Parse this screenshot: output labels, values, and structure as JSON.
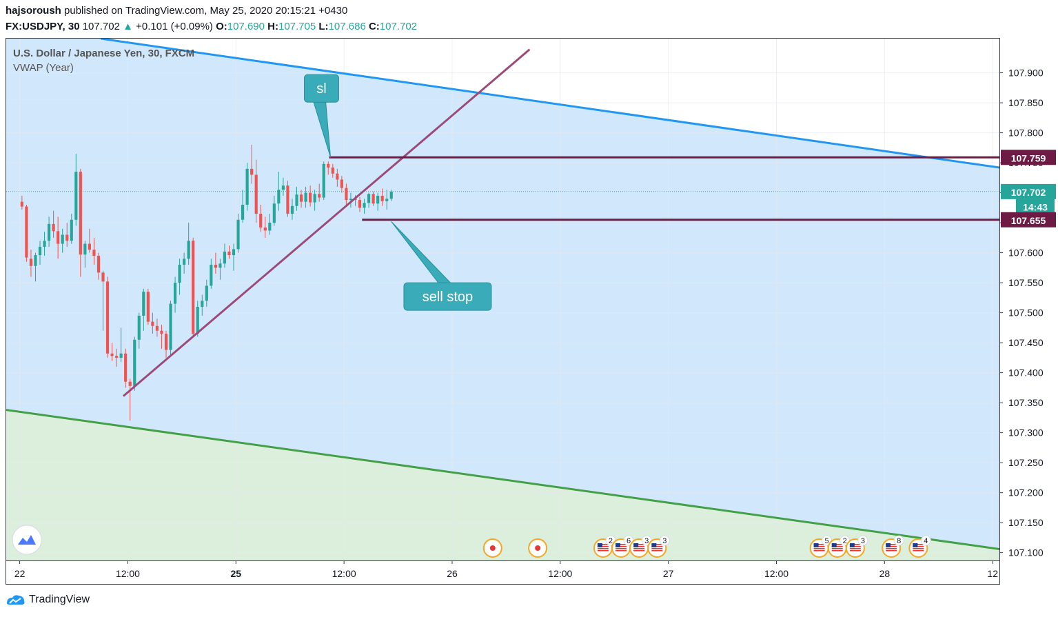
{
  "header": {
    "author": "hajsoroush",
    "published_text": "published on TradingView.com, May 25, 2020 20:15:21 +0430",
    "symbol": "FX:USDJPY, 30",
    "last": "107.702",
    "change": "+0.101 (+0.09%)",
    "o_label": "O:",
    "o_value": "107.690",
    "h_label": "H:",
    "h_value": "107.705",
    "l_label": "L:",
    "l_value": "107.686",
    "c_label": "C:",
    "c_value": "107.702"
  },
  "legend": {
    "title": "U.S. Dollar / Japanese Yen, 30, FXCM",
    "indicator": "VWAP (Year)"
  },
  "footer": {
    "brand": "TradingView"
  },
  "colors": {
    "up": "#26a69a",
    "down": "#ef5350",
    "upper_band": "#2196f3",
    "lower_band": "#43a047",
    "channel_fill": "#d1e8fc",
    "green_fill": "#dcefdc",
    "trendline": "#9c4a7a",
    "level": "#6d1b44",
    "callout": "#3aabb8"
  },
  "chart_data": {
    "type": "candlestick",
    "title": "U.S. Dollar / Japanese Yen, 30, FXCM",
    "y_ticks": [
      "107.900",
      "107.850",
      "107.800",
      "107.750",
      "107.700",
      "107.650",
      "107.600",
      "107.550",
      "107.500",
      "107.450",
      "107.400",
      "107.350",
      "107.300",
      "107.250",
      "107.200",
      "107.150",
      "107.100"
    ],
    "x_ticks": [
      {
        "label": "22",
        "bold": false,
        "bar": -0.5
      },
      {
        "label": "12:00",
        "bold": false,
        "bar": 23.5
      },
      {
        "label": "25",
        "bold": true,
        "bar": 47.5
      },
      {
        "label": "12:00",
        "bold": false,
        "bar": 71.5
      },
      {
        "label": "26",
        "bold": false,
        "bar": 95.5
      },
      {
        "label": "12:00",
        "bold": false,
        "bar": 119.5
      },
      {
        "label": "27",
        "bold": false,
        "bar": 143.5
      },
      {
        "label": "12:00",
        "bold": false,
        "bar": 167.5
      },
      {
        "label": "28",
        "bold": false,
        "bar": 191.5
      },
      {
        "label": "12",
        "bold": false,
        "bar": 215.5
      }
    ],
    "y_range": [
      107.087,
      107.957
    ],
    "bar_range": [
      -3.5,
      217
    ],
    "price_labels": [
      {
        "value": "107.759",
        "price": 107.759,
        "kind": "level"
      },
      {
        "value": "107.702",
        "price": 107.702,
        "kind": "last"
      },
      {
        "value": "14:43",
        "price": 107.677,
        "kind": "countdown"
      },
      {
        "value": "107.655",
        "price": 107.655,
        "kind": "level"
      }
    ],
    "horizontal_levels": [
      {
        "price": 107.759,
        "from_bar": 68.2,
        "name": "sl level"
      },
      {
        "price": 107.655,
        "from_bar": 75.5,
        "name": "sell stop level"
      }
    ],
    "channel": {
      "upper": [
        {
          "bar": 17.5,
          "price": 107.957
        },
        {
          "bar": 217,
          "price": 107.742
        }
      ],
      "lower": [
        {
          "bar": -3.5,
          "price": 107.338
        },
        {
          "bar": 217,
          "price": 107.106
        }
      ]
    },
    "trendline": [
      {
        "bar": 22.5,
        "price": 107.361
      },
      {
        "bar": 112.7,
        "price": 107.939
      }
    ],
    "callouts": [
      {
        "text": "sl",
        "bar": 66.5,
        "price": 107.874,
        "tip_bar": 68.5,
        "tip_price": 107.759
      },
      {
        "text": "sell stop",
        "bar": 94.5,
        "price": 107.527,
        "tip_bar": 82,
        "tip_price": 107.652
      }
    ],
    "events": [
      {
        "bar": 104.5,
        "label": ""
      },
      {
        "bar": 114.5,
        "label": ""
      },
      {
        "bar": 129,
        "label": "2"
      },
      {
        "bar": 133,
        "label": "6"
      },
      {
        "bar": 137,
        "label": "3"
      },
      {
        "bar": 141,
        "label": "3"
      },
      {
        "bar": 177,
        "label": "5"
      },
      {
        "bar": 181,
        "label": "2"
      },
      {
        "bar": 185,
        "label": "3"
      },
      {
        "bar": 193,
        "label": "8"
      },
      {
        "bar": 199,
        "label": "4"
      }
    ],
    "candles": [
      [
        107.685,
        107.695,
        107.672,
        107.677
      ],
      [
        107.677,
        107.68,
        107.585,
        107.592
      ],
      [
        107.59,
        107.605,
        107.56,
        107.578
      ],
      [
        107.578,
        107.6,
        107.552,
        107.596
      ],
      [
        107.596,
        107.62,
        107.58,
        107.61
      ],
      [
        107.61,
        107.635,
        107.595,
        107.62
      ],
      [
        107.62,
        107.66,
        107.61,
        107.648
      ],
      [
        107.648,
        107.67,
        107.625,
        107.636
      ],
      [
        107.636,
        107.66,
        107.59,
        107.615
      ],
      [
        107.615,
        107.64,
        107.6,
        107.63
      ],
      [
        107.63,
        107.65,
        107.61,
        107.62
      ],
      [
        107.62,
        107.665,
        107.615,
        107.655
      ],
      [
        107.655,
        107.765,
        107.645,
        107.735
      ],
      [
        107.735,
        107.74,
        107.56,
        107.597
      ],
      [
        107.597,
        107.62,
        107.575,
        107.615
      ],
      [
        107.615,
        107.64,
        107.6,
        107.605
      ],
      [
        107.605,
        107.625,
        107.58,
        107.595
      ],
      [
        107.595,
        107.6,
        107.555,
        107.567
      ],
      [
        107.567,
        107.57,
        107.47,
        107.552
      ],
      [
        107.552,
        107.56,
        107.425,
        107.432
      ],
      [
        107.432,
        107.45,
        107.42,
        107.428
      ],
      [
        107.428,
        107.44,
        107.41,
        107.425
      ],
      [
        107.425,
        107.475,
        107.418,
        107.432
      ],
      [
        107.432,
        107.44,
        107.375,
        107.385
      ],
      [
        107.385,
        107.39,
        107.32,
        107.378
      ],
      [
        107.378,
        107.46,
        107.37,
        107.455
      ],
      [
        107.455,
        107.5,
        107.44,
        107.495
      ],
      [
        107.495,
        107.54,
        107.47,
        107.535
      ],
      [
        107.535,
        107.54,
        107.48,
        107.485
      ],
      [
        107.485,
        107.5,
        107.465,
        107.478
      ],
      [
        107.478,
        107.49,
        107.46,
        107.47
      ],
      [
        107.47,
        107.48,
        107.44,
        107.465
      ],
      [
        107.465,
        107.47,
        107.425,
        107.438
      ],
      [
        107.438,
        107.52,
        107.43,
        107.515
      ],
      [
        107.515,
        107.56,
        107.5,
        107.55
      ],
      [
        107.55,
        107.59,
        107.53,
        107.58
      ],
      [
        107.58,
        107.6,
        107.565,
        107.59
      ],
      [
        107.59,
        107.65,
        107.58,
        107.62
      ],
      [
        107.62,
        107.625,
        107.46,
        107.465
      ],
      [
        107.465,
        107.52,
        107.46,
        107.51
      ],
      [
        107.51,
        107.53,
        107.495,
        107.52
      ],
      [
        107.52,
        107.555,
        107.51,
        107.545
      ],
      [
        107.545,
        107.59,
        107.54,
        107.58
      ],
      [
        107.58,
        107.6,
        107.565,
        107.575
      ],
      [
        107.575,
        107.59,
        107.555,
        107.582
      ],
      [
        107.582,
        107.615,
        107.575,
        107.602
      ],
      [
        107.602,
        107.612,
        107.59,
        107.596
      ],
      [
        107.596,
        107.615,
        107.57,
        107.606
      ],
      [
        107.606,
        107.665,
        107.6,
        107.655
      ],
      [
        107.655,
        107.705,
        107.65,
        107.68
      ],
      [
        107.68,
        107.75,
        107.67,
        107.74
      ],
      [
        107.74,
        107.78,
        107.715,
        107.73
      ],
      [
        107.73,
        107.755,
        107.65,
        107.665
      ],
      [
        107.665,
        107.68,
        107.635,
        107.642
      ],
      [
        107.642,
        107.66,
        107.625,
        107.637
      ],
      [
        107.637,
        107.665,
        107.63,
        107.65
      ],
      [
        107.65,
        107.695,
        107.645,
        107.682
      ],
      [
        107.682,
        107.735,
        107.67,
        107.705
      ],
      [
        107.705,
        107.725,
        107.695,
        107.712
      ],
      [
        107.712,
        107.72,
        107.66,
        107.665
      ],
      [
        107.665,
        107.69,
        107.655,
        107.678
      ],
      [
        107.678,
        107.71,
        107.67,
        107.697
      ],
      [
        107.697,
        107.705,
        107.675,
        107.685
      ],
      [
        107.685,
        107.71,
        107.675,
        107.7
      ],
      [
        107.7,
        107.712,
        107.677,
        107.684
      ],
      [
        107.684,
        107.705,
        107.67,
        107.698
      ],
      [
        107.698,
        107.715,
        107.685,
        107.692
      ],
      [
        107.692,
        107.752,
        107.688,
        107.748
      ],
      [
        107.748,
        107.752,
        107.73,
        107.742
      ],
      [
        107.742,
        107.748,
        107.725,
        107.732
      ],
      [
        107.732,
        107.74,
        107.71,
        107.722
      ],
      [
        107.722,
        107.728,
        107.7,
        107.708
      ],
      [
        107.708,
        107.715,
        107.68,
        107.688
      ],
      [
        107.688,
        107.7,
        107.675,
        107.69
      ],
      [
        107.69,
        107.696,
        107.678,
        107.688
      ],
      [
        107.688,
        107.693,
        107.668,
        107.675
      ],
      [
        107.675,
        107.69,
        107.665,
        107.683
      ],
      [
        107.683,
        107.7,
        107.675,
        107.698
      ],
      [
        107.698,
        107.702,
        107.678,
        107.682
      ],
      [
        107.682,
        107.7,
        107.67,
        107.695
      ],
      [
        107.695,
        107.707,
        107.678,
        107.686
      ],
      [
        107.686,
        107.705,
        107.672,
        107.69
      ],
      [
        107.69,
        107.705,
        107.686,
        107.702
      ]
    ]
  }
}
